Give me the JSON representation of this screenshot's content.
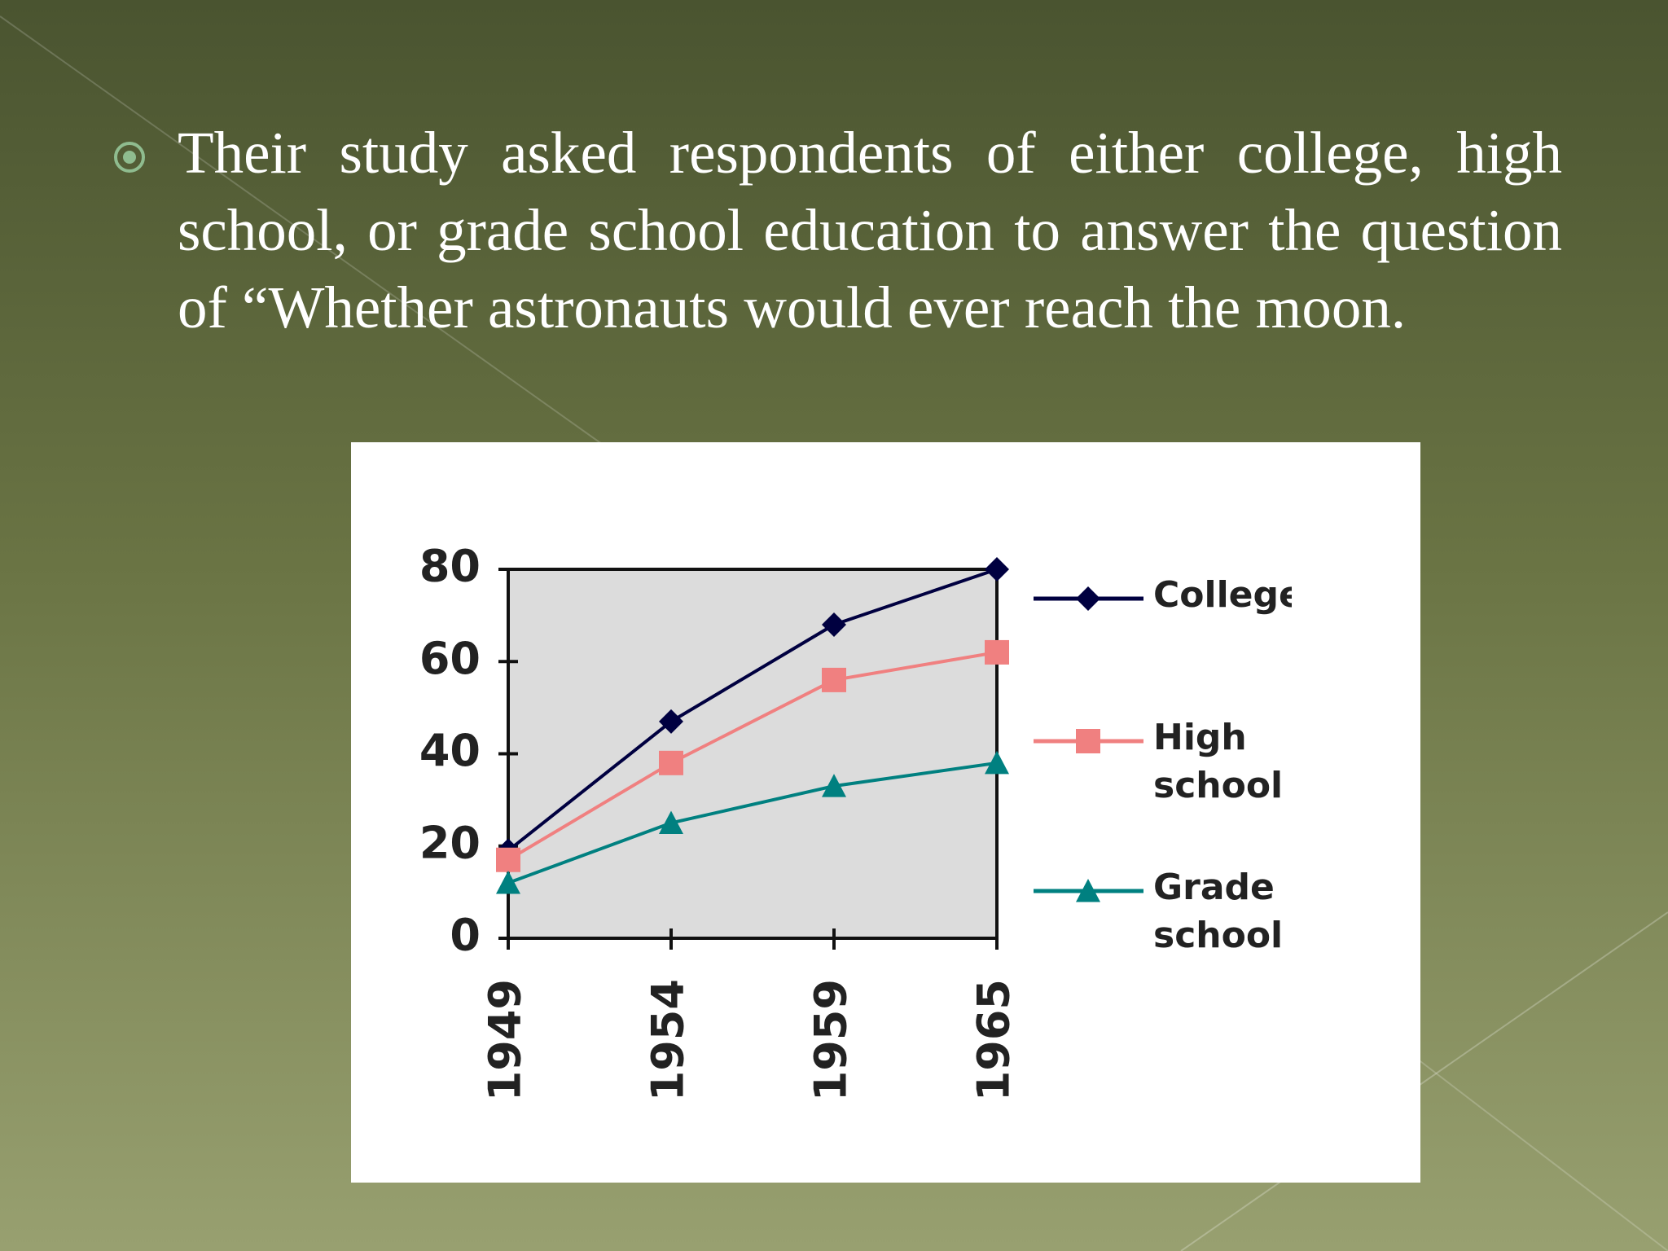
{
  "slide": {
    "bullet": "Their study asked respondents of either college, high school, or grade school education to answer the question of “Whether astronauts would ever reach the moon."
  },
  "chart_data": {
    "type": "line",
    "categories": [
      "1949",
      "1954",
      "1959",
      "1965"
    ],
    "series": [
      {
        "name": "College",
        "color": "#000040",
        "values": [
          19,
          47,
          68,
          80
        ]
      },
      {
        "name": "High school",
        "color": "#f08080",
        "values": [
          17,
          38,
          56,
          62
        ]
      },
      {
        "name": "Grade school",
        "color": "#008080",
        "values": [
          12,
          25,
          33,
          38
        ]
      }
    ],
    "ylim": [
      0,
      80
    ],
    "yticks": [
      0,
      20,
      40,
      60,
      80
    ],
    "legend": "right"
  }
}
